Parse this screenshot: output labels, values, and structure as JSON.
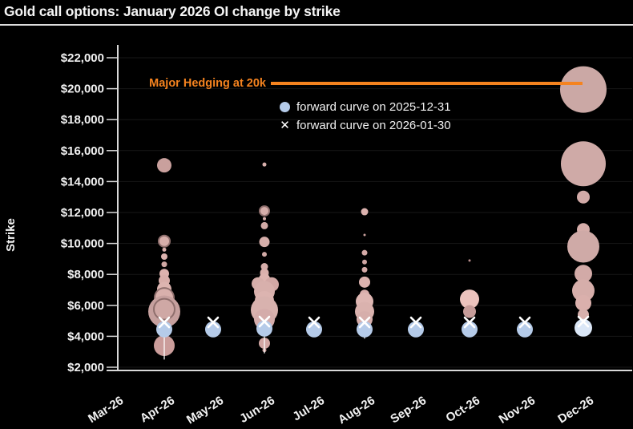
{
  "header": {
    "title": "Gold call options: January 2026 OI change by strike"
  },
  "annotation": {
    "text": "Major Hedging at 20k",
    "color": "#f5831f",
    "target_month": "Dec-26",
    "target_strike": 20000
  },
  "legend": [
    {
      "marker": "circle",
      "label": "forward curve on 2025-12-31"
    },
    {
      "marker": "x",
      "label": "forward curve on 2026-01-30"
    }
  ],
  "colors": {
    "background": "#000000",
    "axis": "#d9d9d9",
    "grid": "rgba(255,255,255,0.09)",
    "tick_text": "#f2f2f2",
    "annotation": "#f5831f",
    "forward_circle": "#b5cbe9",
    "forward_circle_dec": "#dbe7f7",
    "x_marker": "#ffffff",
    "bubble_default": "#d2aaa7",
    "bubble_ring_stroke": "#8f6f6d"
  },
  "chart_data": {
    "type": "scatter",
    "title": "Gold call options: January 2026 OI change by strike",
    "xlabel": "",
    "ylabel": "Strike",
    "ylim": [
      2000,
      22000
    ],
    "grid": true,
    "legend_position": "upper center",
    "size_encoding": "bubble area = OI change magnitude (values unlabeled, radius in px)",
    "x_categories": [
      "Mar-26",
      "Apr-26",
      "May-26",
      "Jun-26",
      "Jul-26",
      "Aug-26",
      "Sep-26",
      "Oct-26",
      "Nov-26",
      "Dec-26"
    ],
    "y_ticks": [
      {
        "v": 2000,
        "label": "$2,000"
      },
      {
        "v": 4000,
        "label": "$4,000"
      },
      {
        "v": 6000,
        "label": "$6,000"
      },
      {
        "v": 8000,
        "label": "$8,000"
      },
      {
        "v": 10000,
        "label": "$10,000"
      },
      {
        "v": 12000,
        "label": "$12,000"
      },
      {
        "v": 14000,
        "label": "$14,000"
      },
      {
        "v": 16000,
        "label": "$16,000"
      },
      {
        "v": 18000,
        "label": "$18,000"
      },
      {
        "v": 20000,
        "label": "$20,000"
      },
      {
        "v": 22000,
        "label": "$22,000"
      }
    ],
    "bubbles": [
      {
        "month": "Apr-26",
        "strike": 15050,
        "r": 9,
        "color": "#c9a09d"
      },
      {
        "month": "Apr-26",
        "strike": 10150,
        "r": 7,
        "color": "#d6aeaa",
        "ring": true
      },
      {
        "month": "Apr-26",
        "strike": 9600,
        "r": 2.5,
        "color": "#d6aeaa"
      },
      {
        "month": "Apr-26",
        "strike": 9150,
        "r": 4,
        "color": "#dcb2ae"
      },
      {
        "month": "Apr-26",
        "strike": 8650,
        "r": 3.5,
        "color": "#d0a8a4"
      },
      {
        "month": "Apr-26",
        "strike": 8050,
        "r": 6,
        "color": "#dcb2ae"
      },
      {
        "month": "Apr-26",
        "strike": 7600,
        "r": 7,
        "color": "#d8aeaa"
      },
      {
        "month": "Apr-26",
        "strike": 7050,
        "r": 9,
        "color": "#dcb4b0"
      },
      {
        "month": "Apr-26",
        "strike": 6500,
        "r": 12,
        "color": "#d8b0ac",
        "ring": true
      },
      {
        "month": "Apr-26",
        "strike": 5600,
        "r": 20,
        "color": "#c6a09e"
      },
      {
        "month": "Apr-26",
        "strike": 5750,
        "r": 13,
        "color": "#cfa8a5",
        "ring": true
      },
      {
        "month": "Apr-26",
        "strike": 3400,
        "r": 13,
        "color": "#cb9d9b"
      },
      {
        "month": "Jun-26",
        "strike": 15100,
        "r": 2.5,
        "color": "#d8b0ac"
      },
      {
        "month": "Jun-26",
        "strike": 12100,
        "r": 6,
        "color": "#d6aeaa",
        "ring": true
      },
      {
        "month": "Jun-26",
        "strike": 11600,
        "r": 2,
        "color": "#d6aeaa"
      },
      {
        "month": "Jun-26",
        "strike": 11150,
        "r": 4.5,
        "color": "#d2aaa6"
      },
      {
        "month": "Jun-26",
        "strike": 10100,
        "r": 6.5,
        "color": "#d6aeaa"
      },
      {
        "month": "Jun-26",
        "strike": 9300,
        "r": 3,
        "color": "#d2aaa6"
      },
      {
        "month": "Jun-26",
        "strike": 8500,
        "r": 4.5,
        "color": "#d6aeaa"
      },
      {
        "month": "Jun-26",
        "strike": 8100,
        "r": 5.5,
        "color": "#dab0ac"
      },
      {
        "month": "Jun-26",
        "strike": 7700,
        "r": 7,
        "color": "#deb4b0"
      },
      {
        "month": "Jun-26",
        "strike": 7400,
        "r": 8,
        "color": "#d6aeaa",
        "dx": -8
      },
      {
        "month": "Jun-26",
        "strike": 7350,
        "r": 9,
        "color": "#d2a8a5",
        "dx": 9
      },
      {
        "month": "Jun-26",
        "strike": 6900,
        "r": 13,
        "color": "#d8b0ac"
      },
      {
        "month": "Jun-26",
        "strike": 6300,
        "r": 12,
        "color": "#dcb4b0"
      },
      {
        "month": "Jun-26",
        "strike": 5700,
        "r": 17,
        "color": "#d8b2ae"
      },
      {
        "month": "Jun-26",
        "strike": 5100,
        "r": 13,
        "color": "#d4acaa"
      },
      {
        "month": "Jun-26",
        "strike": 3550,
        "r": 7,
        "color": "#d2a7a4"
      },
      {
        "month": "Jun-26",
        "strike": 3100,
        "r": 2.5,
        "color": "#cda29f"
      },
      {
        "month": "Aug-26",
        "strike": 12050,
        "r": 4.5,
        "color": "#dcb2ae"
      },
      {
        "month": "Aug-26",
        "strike": 10550,
        "r": 1.5,
        "color": "#c9a09d"
      },
      {
        "month": "Aug-26",
        "strike": 9400,
        "r": 3.5,
        "color": "#d4aaa7"
      },
      {
        "month": "Aug-26",
        "strike": 8800,
        "r": 3,
        "color": "#d0a6a3"
      },
      {
        "month": "Aug-26",
        "strike": 8300,
        "r": 3.5,
        "color": "#d4aaa7"
      },
      {
        "month": "Aug-26",
        "strike": 7500,
        "r": 7,
        "color": "#dcb2ae"
      },
      {
        "month": "Aug-26",
        "strike": 6700,
        "r": 6,
        "color": "#d8aeab"
      },
      {
        "month": "Aug-26",
        "strike": 6250,
        "r": 11,
        "color": "#deb6b2"
      },
      {
        "month": "Aug-26",
        "strike": 5600,
        "r": 12,
        "color": "#dab2ae"
      },
      {
        "month": "Aug-26",
        "strike": 5100,
        "r": 10,
        "color": "#d6aeab"
      },
      {
        "month": "Aug-26",
        "strike": 4100,
        "r": 2.5,
        "color": "#d0a6a3"
      },
      {
        "month": "Oct-26",
        "strike": 8900,
        "r": 1.5,
        "color": "#b98f8d"
      },
      {
        "month": "Oct-26",
        "strike": 6400,
        "r": 12,
        "color": "#ecc3bd"
      },
      {
        "month": "Oct-26",
        "strike": 5600,
        "r": 8,
        "color": "#c69c99"
      },
      {
        "month": "Dec-26",
        "strike": 19950,
        "r": 29,
        "color": "#cba8a5"
      },
      {
        "month": "Dec-26",
        "strike": 15150,
        "r": 28,
        "color": "#cfaaa7"
      },
      {
        "month": "Dec-26",
        "strike": 13000,
        "r": 8,
        "color": "#d2aaa7"
      },
      {
        "month": "Dec-26",
        "strike": 10900,
        "r": 8,
        "color": "#d6aeaa"
      },
      {
        "month": "Dec-26",
        "strike": 9800,
        "r": 20,
        "color": "#cfaaa7"
      },
      {
        "month": "Dec-26",
        "strike": 8050,
        "r": 11,
        "color": "#d2aaa7"
      },
      {
        "month": "Dec-26",
        "strike": 6950,
        "r": 14,
        "color": "#d6aeaa"
      },
      {
        "month": "Dec-26",
        "strike": 6150,
        "r": 10,
        "color": "#dab0ac"
      },
      {
        "month": "Dec-26",
        "strike": 5400,
        "r": 7,
        "color": "#d8b0ac"
      }
    ],
    "series": [
      {
        "name": "forward curve on 2025-12-31",
        "marker": "circle",
        "points": [
          {
            "month": "Apr-26",
            "strike": 4450
          },
          {
            "month": "May-26",
            "strike": 4450
          },
          {
            "month": "Jun-26",
            "strike": 4500
          },
          {
            "month": "Jul-26",
            "strike": 4450
          },
          {
            "month": "Aug-26",
            "strike": 4450
          },
          {
            "month": "Sep-26",
            "strike": 4450
          },
          {
            "month": "Oct-26",
            "strike": 4450
          },
          {
            "month": "Nov-26",
            "strike": 4450
          },
          {
            "month": "Dec-26",
            "strike": 4550
          }
        ]
      },
      {
        "name": "forward curve on 2026-01-30",
        "marker": "x",
        "points": [
          {
            "month": "Apr-26",
            "strike": 4900
          },
          {
            "month": "May-26",
            "strike": 4900
          },
          {
            "month": "Jun-26",
            "strike": 4950
          },
          {
            "month": "Jul-26",
            "strike": 4900
          },
          {
            "month": "Aug-26",
            "strike": 4900
          },
          {
            "month": "Sep-26",
            "strike": 4900
          },
          {
            "month": "Oct-26",
            "strike": 4900
          },
          {
            "month": "Nov-26",
            "strike": 4900
          },
          {
            "month": "Dec-26",
            "strike": 4950
          }
        ]
      }
    ],
    "stems": [
      {
        "month": "Apr-26",
        "from_strike": 4400,
        "to_strike": 2500
      },
      {
        "month": "Jun-26",
        "from_strike": 4400,
        "to_strike": 2900
      },
      {
        "month": "Aug-26",
        "from_strike": 4350,
        "to_strike": 3850
      }
    ]
  }
}
